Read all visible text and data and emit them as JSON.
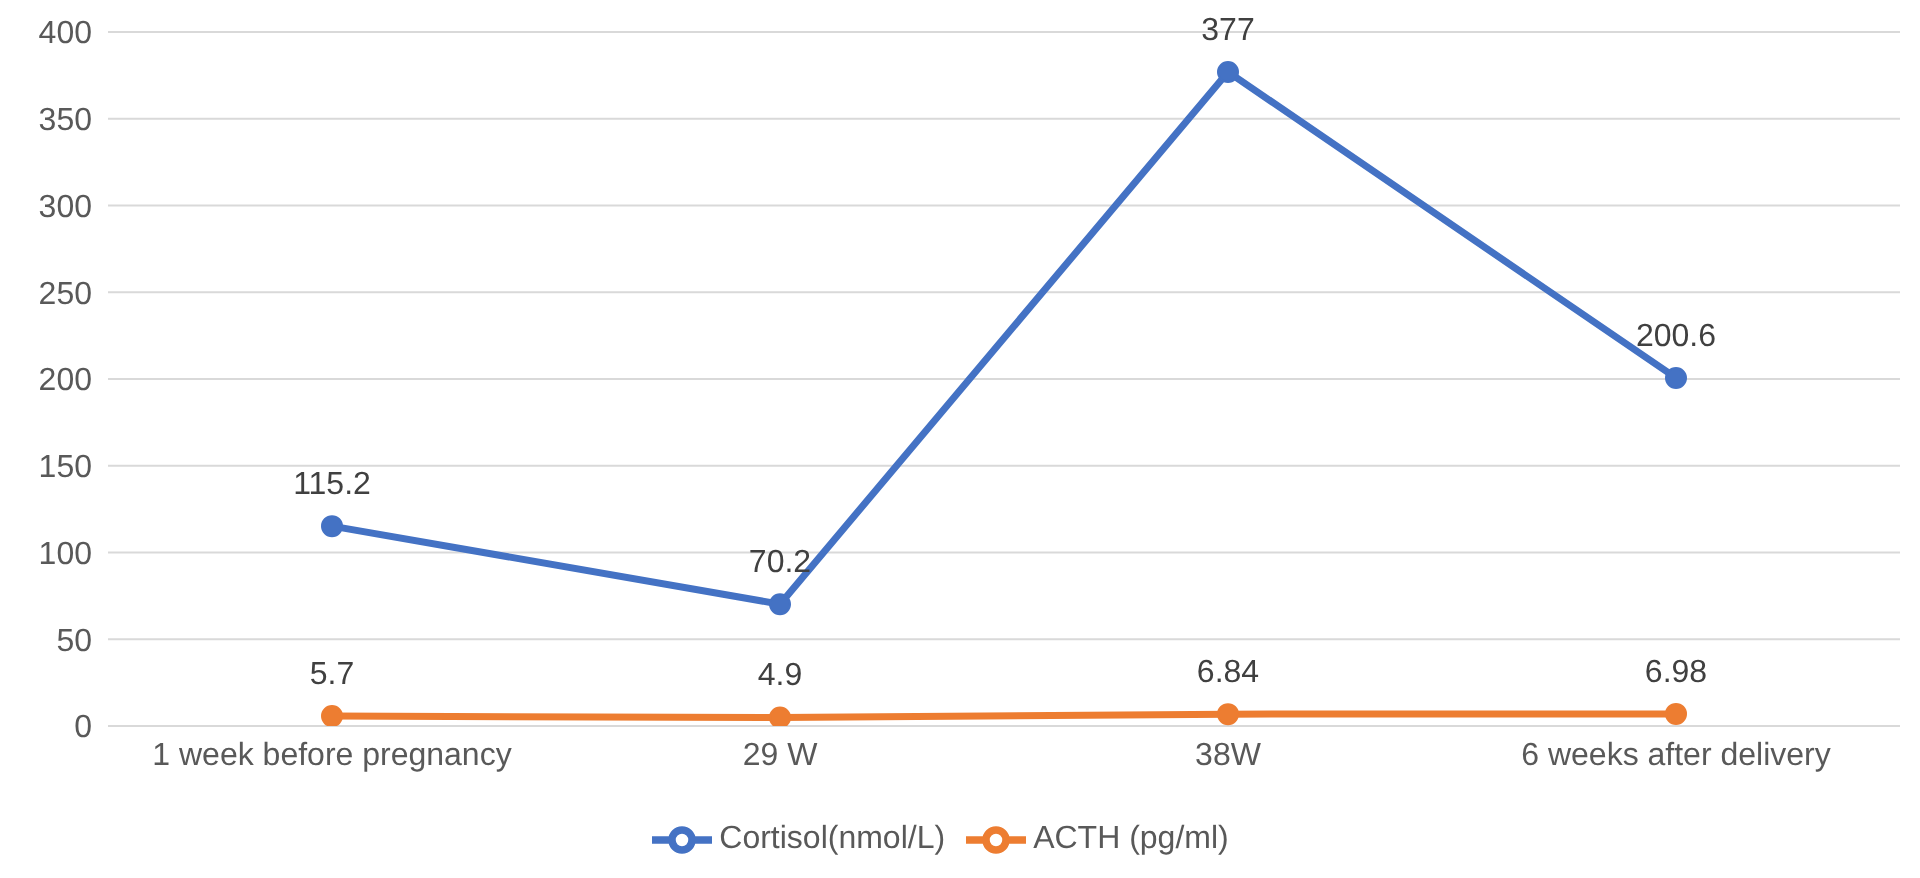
{
  "chart_data": {
    "type": "line",
    "categories": [
      "1 week before pregnancy",
      "29 W",
      "38W",
      "6 weeks after delivery"
    ],
    "series": [
      {
        "name": "Cortisol(nmol/L)",
        "color": "#4472c4",
        "values": [
          115.2,
          70.2,
          377,
          200.6
        ]
      },
      {
        "name": "ACTH (pg/ml)",
        "color": "#ed7d31",
        "values": [
          5.7,
          4.9,
          6.84,
          6.98
        ]
      }
    ],
    "ylim": [
      0,
      400
    ],
    "yticks": [
      0,
      50,
      100,
      150,
      200,
      250,
      300,
      350,
      400
    ],
    "grid": "y",
    "legend": "bottom",
    "marker": "circle",
    "line_style": "solid",
    "data_labels": true
  }
}
